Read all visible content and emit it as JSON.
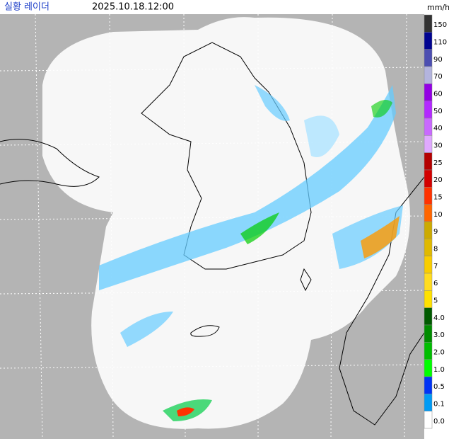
{
  "header": {
    "title": "실황 레이더",
    "timestamp": "2025.10.18.12:00",
    "unit": "mm/h"
  },
  "legend": [
    {
      "label": "150",
      "color": "#333333"
    },
    {
      "label": "110",
      "color": "#000390"
    },
    {
      "label": "90",
      "color": "#4c4eb1"
    },
    {
      "label": "70",
      "color": "#b3b4de"
    },
    {
      "label": "60",
      "color": "#9300e4"
    },
    {
      "label": "50",
      "color": "#b329ff"
    },
    {
      "label": "40",
      "color": "#c969ff"
    },
    {
      "label": "30",
      "color": "#e0a9ff"
    },
    {
      "label": "25",
      "color": "#b40000"
    },
    {
      "label": "20",
      "color": "#d20000"
    },
    {
      "label": "15",
      "color": "#ff3200"
    },
    {
      "label": "10",
      "color": "#ff6600"
    },
    {
      "label": "9",
      "color": "#ccaa00"
    },
    {
      "label": "8",
      "color": "#e0b900"
    },
    {
      "label": "7",
      "color": "#f9cd00"
    },
    {
      "label": "6",
      "color": "#ffdc1f"
    },
    {
      "label": "5",
      "color": "#ffe100"
    },
    {
      "label": "4.0",
      "color": "#005a00"
    },
    {
      "label": "3.0",
      "color": "#008c00"
    },
    {
      "label": "2.0",
      "color": "#00be00"
    },
    {
      "label": "1.0",
      "color": "#00ff00"
    },
    {
      "label": "0.5",
      "color": "#0033f5"
    },
    {
      "label": "0.1",
      "color": "#009bf5"
    },
    {
      "label": "0.0",
      "color": "#ffffff"
    }
  ]
}
